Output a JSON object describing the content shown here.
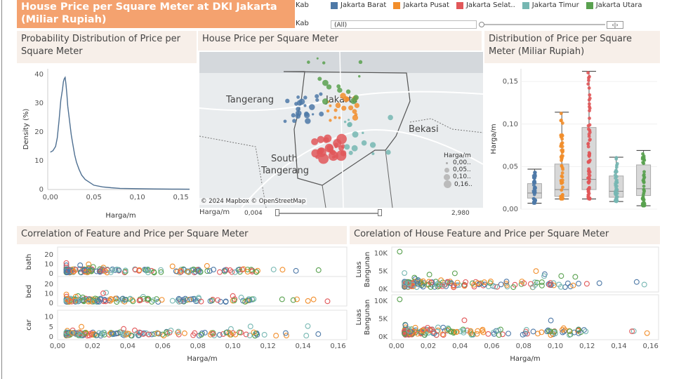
{
  "title": "House Price per Square Meter at DKI Jakarta (Miliar Rupiah)",
  "filters": {
    "kab_label_top": "Kab",
    "kab_label": "Kab",
    "kab_value": "(All)"
  },
  "legend": {
    "items": [
      {
        "label": "Jakarta Barat",
        "color": "#4e79a7"
      },
      {
        "label": "Jakarta Pusat",
        "color": "#f28e2b"
      },
      {
        "label": "Jakarta Selat..",
        "color": "#e15759"
      },
      {
        "label": "Jakarta Timur",
        "color": "#76b7b2"
      },
      {
        "label": "Jakarta Utara",
        "color": "#59a14f"
      }
    ]
  },
  "panels": {
    "density_title": "Probability Distribution of Price per Square Meter",
    "map_title": "House Price per Square Meter",
    "box_title": "Distribution of Price per Square Meter  (Miliar Rupiah)",
    "corr_left_title": "Correlation of Feature and Price per Square Meter",
    "corr_right_title": "Corelation of House Feature and Price per Square Meter"
  },
  "map": {
    "labels": [
      "Tangerang",
      "Jakarta",
      "Bekasi",
      "South",
      "Tangerang"
    ],
    "attribution": "© 2024 Mapbox © OpenStreetMap",
    "size_legend_title": "Harga/m",
    "size_legend_items": [
      "0,00..",
      "0,05..",
      "0,10..",
      "0,16.."
    ],
    "slider_label": "Harga/m",
    "slider_min": "0,004",
    "slider_max": "2,980"
  },
  "chart_data": [
    {
      "type": "line",
      "title": "Probability Distribution of Price per Square Meter",
      "xlabel": "Harga/m",
      "ylabel": "Density (%)",
      "xlim": [
        -0.003,
        0.16
      ],
      "ylim": [
        0,
        42
      ],
      "xticks": [
        "0,00",
        "0,05",
        "0,10",
        "0,15"
      ],
      "yticks": [
        "0",
        "10",
        "20",
        "30",
        "40"
      ],
      "x": [
        0.0,
        0.003,
        0.006,
        0.008,
        0.01,
        0.012,
        0.014,
        0.015,
        0.016,
        0.017,
        0.018,
        0.019,
        0.02,
        0.022,
        0.024,
        0.026,
        0.028,
        0.03,
        0.033,
        0.036,
        0.04,
        0.045,
        0.05,
        0.06,
        0.07,
        0.08,
        0.1,
        0.12,
        0.14,
        0.16
      ],
      "y": [
        13,
        13.5,
        15,
        18,
        24,
        31,
        35,
        37.5,
        38.5,
        39,
        36.5,
        33,
        29,
        24,
        19,
        15.5,
        12,
        9.5,
        7,
        5,
        3.5,
        2.5,
        1.5,
        0.9,
        0.6,
        0.4,
        0.3,
        0.2,
        0.15,
        0.1
      ]
    },
    {
      "type": "box",
      "title": "Distribution of Price per Square Meter (Miliar Rupiah)",
      "ylabel": "Harga/m",
      "ylim": [
        0,
        0.165
      ],
      "yticks": [
        "0,00",
        "0,05",
        "0,10",
        "0,15"
      ],
      "categories": [
        "Jakarta Barat",
        "Jakarta Pusat",
        "Jakarta Selatan",
        "Jakarta Timur",
        "Jakarta Utara"
      ],
      "boxes": [
        {
          "min": 0.007,
          "q1": 0.013,
          "median": 0.019,
          "q3": 0.03,
          "max": 0.047
        },
        {
          "min": 0.012,
          "q1": 0.015,
          "median": 0.023,
          "q3": 0.053,
          "max": 0.114
        },
        {
          "min": 0.012,
          "q1": 0.023,
          "median": 0.035,
          "q3": 0.096,
          "max": 0.162
        },
        {
          "min": 0.009,
          "q1": 0.014,
          "median": 0.021,
          "q3": 0.039,
          "max": 0.061
        },
        {
          "min": 0.004,
          "q1": 0.016,
          "median": 0.024,
          "q3": 0.052,
          "max": 0.069
        }
      ]
    },
    {
      "type": "scatter",
      "title": "Correlation of Feature and Price per Square Meter",
      "xlabel": "Harga/m",
      "xlim": [
        0,
        0.165
      ],
      "xticks": [
        "0,00",
        "0,02",
        "0,04",
        "0,06",
        "0,08",
        "0,10",
        "0,12",
        "0,14",
        "0,16"
      ],
      "rows": [
        {
          "name": "bath",
          "yticks": [
            "0",
            "10",
            "20"
          ],
          "ylim": [
            0,
            25
          ]
        },
        {
          "name": "bed",
          "yticks": [
            "0",
            "10",
            "20"
          ],
          "ylim": [
            0,
            25
          ]
        },
        {
          "name": "car",
          "yticks": [
            "0",
            "5",
            "10"
          ],
          "ylim": [
            0,
            12
          ]
        }
      ]
    },
    {
      "type": "scatter",
      "title": "Corelation of House Feature and Price per Square Meter",
      "xlabel": "Harga/m",
      "xlim": [
        -0.003,
        0.165
      ],
      "xticks": [
        "0,00",
        "0,02",
        "0,04",
        "0,06",
        "0,08",
        "0,10",
        "0,12",
        "0,14",
        "0,16"
      ],
      "rows": [
        {
          "name": "Luas Bangunan",
          "yticks": [
            "0K",
            "5K",
            "10K"
          ],
          "ylim": [
            0,
            11000
          ]
        },
        {
          "name": "Luas Bangunan",
          "yticks": [
            "0K",
            "5K",
            "10K"
          ],
          "ylim": [
            0,
            11000
          ]
        }
      ]
    }
  ]
}
